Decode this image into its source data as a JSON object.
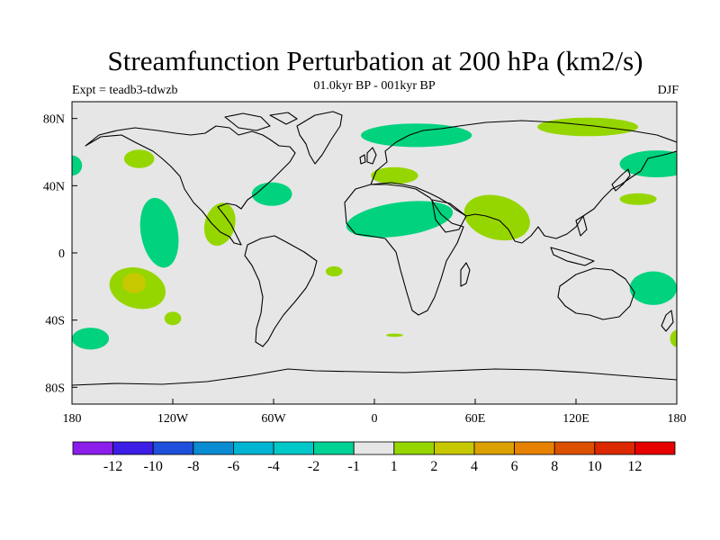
{
  "title": "Streamfunction Perturbation at 200 hPa (km2/s)",
  "subtitle_left": "Expt = teadb3-tdwzb",
  "subtitle_center": "01.0kyr BP - 001kyr BP",
  "subtitle_right": "DJF",
  "map": {
    "lon_range": [
      -180,
      180
    ],
    "lat_range": [
      -90,
      90
    ],
    "background": "#e6e6e6",
    "lon_ticks": [
      {
        "value": -180,
        "label": "180"
      },
      {
        "value": -120,
        "label": "120W"
      },
      {
        "value": -60,
        "label": "60W"
      },
      {
        "value": 0,
        "label": "0"
      },
      {
        "value": 60,
        "label": "60E"
      },
      {
        "value": 120,
        "label": "120E"
      },
      {
        "value": 180,
        "label": "180"
      }
    ],
    "lat_ticks": [
      {
        "value": 80,
        "label": "80N"
      },
      {
        "value": 40,
        "label": "40N"
      },
      {
        "value": 0,
        "label": "0"
      },
      {
        "value": -40,
        "label": "40S"
      },
      {
        "value": -80,
        "label": "80S"
      }
    ],
    "regions": [
      {
        "name": "n-atlantic-scandinavia-low",
        "color": "#00d27e",
        "lon": 25,
        "lat": 70,
        "rx": 33,
        "ry": 7,
        "rot": 0
      },
      {
        "name": "arctic-siberia-high",
        "color": "#96d600",
        "lon": 127,
        "lat": 75,
        "rx": 30,
        "ry": 5.5,
        "rot": 0
      },
      {
        "name": "europe-high",
        "color": "#96d600",
        "lon": 12,
        "lat": 46,
        "rx": 14,
        "ry": 5,
        "rot": 0
      },
      {
        "name": "n-africa-low",
        "color": "#00d27e",
        "lon": 15,
        "lat": 20,
        "rx": 32,
        "ry": 10,
        "rot": -8
      },
      {
        "name": "india-high",
        "color": "#96d600",
        "lon": 73,
        "lat": 21,
        "rx": 20,
        "ry": 13,
        "rot": 15
      },
      {
        "name": "kamchatka-low",
        "color": "#00d27e",
        "lon": 168,
        "lat": 53,
        "rx": 22,
        "ry": 8,
        "rot": 0
      },
      {
        "name": "nw-pacific-high",
        "color": "#96d600",
        "lon": 157,
        "lat": 32,
        "rx": 11,
        "ry": 3.5,
        "rot": 0
      },
      {
        "name": "dateline-low",
        "color": "#00d27e",
        "lon": -180,
        "lat": 52,
        "rx": 6,
        "ry": 6,
        "rot": 0
      },
      {
        "name": "alaska-high",
        "color": "#96d600",
        "lon": -140,
        "lat": 56,
        "rx": 9,
        "ry": 5.5,
        "rot": 0
      },
      {
        "name": "e-pacific-low",
        "color": "#00d27e",
        "lon": -128,
        "lat": 12,
        "rx": 11,
        "ry": 21,
        "rot": -10
      },
      {
        "name": "w-atlantic-low",
        "color": "#00d27e",
        "lon": -61,
        "lat": 35,
        "rx": 12,
        "ry": 7,
        "rot": 0
      },
      {
        "name": "caribbean-high",
        "color": "#96d600",
        "lon": -92,
        "lat": 17,
        "rx": 9,
        "ry": 13,
        "rot": 15
      },
      {
        "name": "s-pacific-high",
        "color": "#96d600",
        "lon": -141,
        "lat": -21,
        "rx": 17,
        "ry": 12,
        "rot": 15
      },
      {
        "name": "s-pacific-high-core",
        "color": "#c8c800",
        "lon": -143,
        "lat": -18,
        "rx": 7,
        "ry": 6,
        "rot": 0
      },
      {
        "name": "s-pacific-small-high",
        "color": "#96d600",
        "lon": -120,
        "lat": -39,
        "rx": 5,
        "ry": 4,
        "rot": 0
      },
      {
        "name": "s-atlantic-small-high",
        "color": "#96d600",
        "lon": -24,
        "lat": -11,
        "rx": 5,
        "ry": 3,
        "rot": 0
      },
      {
        "name": "se-pacific-low",
        "color": "#00d27e",
        "lon": -169,
        "lat": -51,
        "rx": 11,
        "ry": 6.5,
        "rot": 0
      },
      {
        "name": "tasman-low",
        "color": "#00d27e",
        "lon": 166,
        "lat": -21,
        "rx": 14,
        "ry": 10,
        "rot": 0
      },
      {
        "name": "s-africa-high",
        "color": "#96d600",
        "lon": 12,
        "lat": -49,
        "rx": 5,
        "ry": 1,
        "rot": 0
      },
      {
        "name": "dateline-east-high",
        "color": "#96d600",
        "lon": 180,
        "lat": -51,
        "rx": 4,
        "ry": 5,
        "rot": 0
      }
    ]
  },
  "colorbar": {
    "colors": [
      "#8c1eeb",
      "#3c1ee6",
      "#1e50dc",
      "#0a8cd2",
      "#00b4d2",
      "#00c8c8",
      "#00d296",
      "#e6e6e6",
      "#96d600",
      "#c8c800",
      "#dca000",
      "#e68200",
      "#dc5000",
      "#dc2800",
      "#e60000"
    ],
    "labels": [
      "-12",
      "-10",
      "-8",
      "-6",
      "-4",
      "-2",
      "-1",
      "1",
      "2",
      "4",
      "6",
      "8",
      "10",
      "12"
    ]
  }
}
